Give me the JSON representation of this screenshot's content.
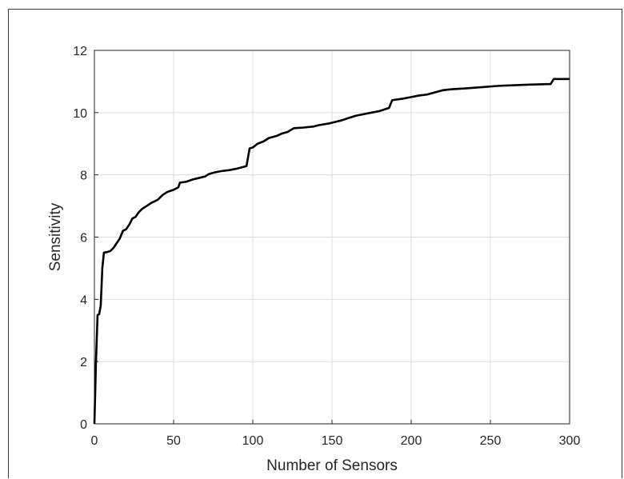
{
  "chart_data": {
    "type": "line",
    "title": "",
    "xlabel": "Number of Sensors",
    "ylabel": "Sensitivity",
    "xlim": [
      0,
      300
    ],
    "ylim": [
      0,
      12
    ],
    "xticks": [
      0,
      50,
      100,
      150,
      200,
      250,
      300
    ],
    "yticks": [
      0,
      2,
      4,
      6,
      8,
      10,
      12
    ],
    "grid": true,
    "legend": "none",
    "colors": {
      "line": "#000000",
      "grid": "#dcdcdc",
      "axis": "#262626"
    },
    "series": [
      {
        "values": [
          [
            0,
            0
          ],
          [
            1,
            2.0
          ],
          [
            2,
            3.5
          ],
          [
            3,
            3.52
          ],
          [
            4,
            3.8
          ],
          [
            5,
            5.0
          ],
          [
            6,
            5.5
          ],
          [
            8,
            5.52
          ],
          [
            10,
            5.55
          ],
          [
            12,
            5.65
          ],
          [
            14,
            5.8
          ],
          [
            16,
            5.95
          ],
          [
            18,
            6.2
          ],
          [
            20,
            6.25
          ],
          [
            22,
            6.4
          ],
          [
            24,
            6.6
          ],
          [
            26,
            6.65
          ],
          [
            28,
            6.8
          ],
          [
            30,
            6.9
          ],
          [
            33,
            7.0
          ],
          [
            36,
            7.1
          ],
          [
            40,
            7.2
          ],
          [
            43,
            7.35
          ],
          [
            46,
            7.45
          ],
          [
            50,
            7.52
          ],
          [
            53,
            7.6
          ],
          [
            54,
            7.75
          ],
          [
            58,
            7.78
          ],
          [
            62,
            7.85
          ],
          [
            66,
            7.9
          ],
          [
            70,
            7.95
          ],
          [
            72,
            8.02
          ],
          [
            76,
            8.08
          ],
          [
            80,
            8.12
          ],
          [
            85,
            8.15
          ],
          [
            90,
            8.2
          ],
          [
            96,
            8.28
          ],
          [
            98,
            8.85
          ],
          [
            100,
            8.88
          ],
          [
            103,
            9.0
          ],
          [
            107,
            9.08
          ],
          [
            110,
            9.18
          ],
          [
            115,
            9.25
          ],
          [
            118,
            9.32
          ],
          [
            122,
            9.38
          ],
          [
            126,
            9.5
          ],
          [
            132,
            9.52
          ],
          [
            138,
            9.55
          ],
          [
            142,
            9.6
          ],
          [
            148,
            9.65
          ],
          [
            152,
            9.7
          ],
          [
            156,
            9.75
          ],
          [
            160,
            9.82
          ],
          [
            165,
            9.9
          ],
          [
            170,
            9.95
          ],
          [
            175,
            10.0
          ],
          [
            180,
            10.05
          ],
          [
            186,
            10.15
          ],
          [
            188,
            10.4
          ],
          [
            195,
            10.45
          ],
          [
            200,
            10.5
          ],
          [
            205,
            10.55
          ],
          [
            210,
            10.58
          ],
          [
            215,
            10.65
          ],
          [
            220,
            10.72
          ],
          [
            225,
            10.75
          ],
          [
            235,
            10.78
          ],
          [
            245,
            10.82
          ],
          [
            255,
            10.86
          ],
          [
            265,
            10.88
          ],
          [
            275,
            10.9
          ],
          [
            288,
            10.92
          ],
          [
            290,
            11.08
          ],
          [
            295,
            11.08
          ],
          [
            300,
            11.08
          ]
        ]
      }
    ]
  }
}
